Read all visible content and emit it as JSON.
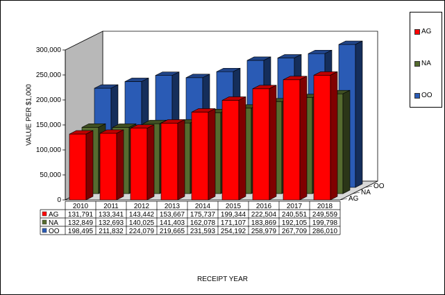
{
  "chart_data": {
    "type": "bar",
    "categories": [
      "2010",
      "2011",
      "2012",
      "2013",
      "2014",
      "2015",
      "2016",
      "2017",
      "2018"
    ],
    "series": [
      {
        "name": "AG",
        "color": "#ff0000",
        "values": [
          131791,
          133341,
          143442,
          153667,
          175737,
          199344,
          222504,
          240551,
          249559
        ],
        "display": [
          "131,791",
          "133,341",
          "143,442",
          "153,667",
          "175,737",
          "199,344",
          "222,504",
          "240,551",
          "249,559"
        ]
      },
      {
        "name": "NA",
        "color": "#556b2f",
        "values": [
          132849,
          132693,
          140025,
          141403,
          162078,
          171107,
          183869,
          192105,
          199798
        ],
        "display": [
          "132,849",
          "132,693",
          "140,025",
          "141,403",
          "162,078",
          "171,107",
          "183,869",
          "192,105",
          "199,798"
        ]
      },
      {
        "name": "OO",
        "color": "#2a5bb5",
        "values": [
          198495,
          211832,
          224079,
          219665,
          231593,
          254192,
          258979,
          267709,
          286010
        ],
        "display": [
          "198,495",
          "211,832",
          "224,079",
          "219,665",
          "231,593",
          "254,192",
          "258,979",
          "267,709",
          "286,010"
        ]
      }
    ],
    "yticks": [
      "0",
      "50,000",
      "100,000",
      "150,000",
      "200,000",
      "250,000",
      "300,000"
    ],
    "ylim": [
      0,
      300000
    ],
    "ylabel": "VALUE PER $1,000",
    "xlabel": "RECEIPT YEAR",
    "depth_labels": [
      "AG",
      "NA",
      "OO"
    ],
    "legend": [
      {
        "name": "AG",
        "color": "#ff0000"
      },
      {
        "name": "NA",
        "color": "#556b2f"
      },
      {
        "name": "OO",
        "color": "#2a5bb5"
      }
    ]
  }
}
